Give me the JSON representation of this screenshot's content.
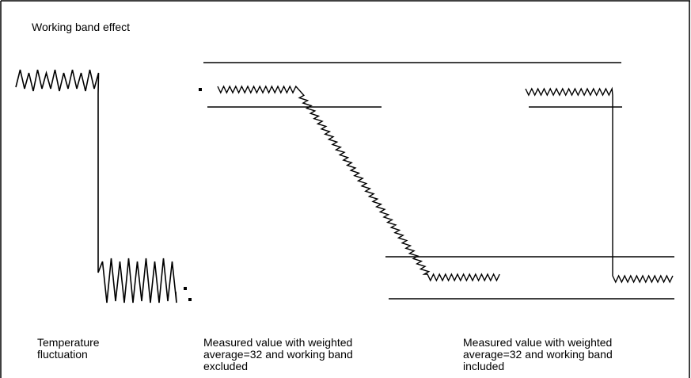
{
  "diagram": {
    "title": "Working band effect",
    "labels": {
      "temperature": [
        "Temperature",
        "fluctuation"
      ],
      "excluded": [
        "Measured value with weighted",
        "average=32 and working band",
        "excluded"
      ],
      "included": [
        "Measured value with weighted",
        "average=32 and working band",
        "included"
      ]
    },
    "colors": {
      "line": "#000000",
      "background": "#ffffff"
    }
  }
}
